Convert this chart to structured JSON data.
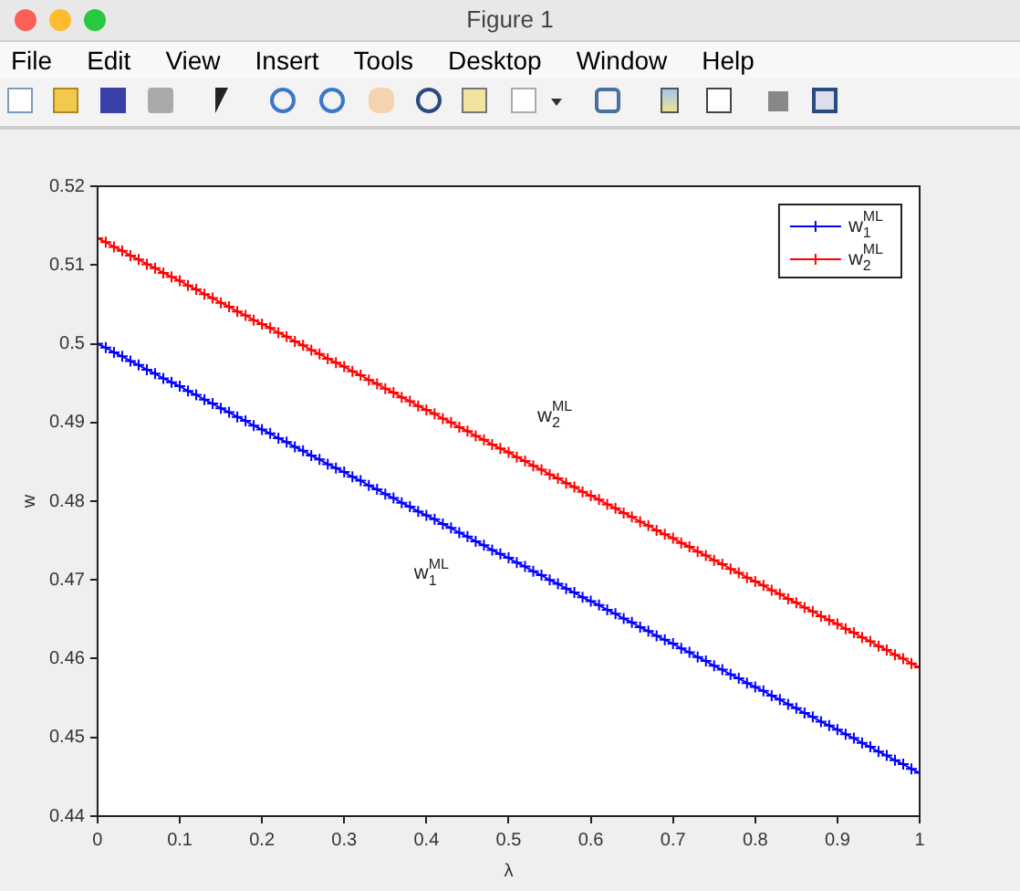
{
  "chart_data": {
    "type": "line",
    "xlabel": "λ",
    "ylabel": "w",
    "annotations": [
      "Figure 1",
      "File",
      "Edit",
      "View",
      "Insert",
      "Tools",
      "Desktop",
      "Window",
      "Help",
      "w$_{2}$$^{ML}$",
      "w$_{1}$$^{ML}$"
    ],
    "x": [
      0,
      0.01,
      0.02,
      0.03,
      0.04,
      0.05,
      0.06,
      0.07,
      0.08,
      0.09,
      0.1,
      0.11,
      0.12,
      0.13,
      0.14,
      0.15,
      0.16,
      0.17,
      0.18,
      0.19,
      0.2,
      0.21,
      0.22,
      0.23,
      0.24,
      0.25,
      0.26,
      0.27,
      0.28,
      0.29,
      0.3,
      0.31,
      0.32,
      0.33,
      0.34,
      0.35,
      0.36,
      0.37,
      0.38,
      0.39,
      0.4,
      0.41,
      0.42,
      0.43,
      0.44,
      0.45,
      0.46,
      0.47,
      0.48,
      0.49,
      0.5,
      0.51,
      0.52,
      0.53,
      0.54,
      0.55,
      0.56,
      0.57,
      0.58,
      0.59,
      0.6,
      0.61,
      0.62,
      0.63,
      0.64,
      0.65,
      0.66,
      0.67,
      0.68,
      0.69,
      0.7,
      0.71,
      0.72,
      0.73,
      0.74,
      0.75,
      0.76,
      0.77,
      0.78,
      0.79,
      0.8,
      0.81,
      0.82,
      0.83,
      0.84,
      0.85,
      0.86,
      0.87,
      0.88,
      0.89,
      0.9,
      0.91,
      0.92,
      0.93,
      0.94,
      0.95,
      0.96,
      0.97,
      0.98,
      0.99,
      1
    ],
    "series": [
      {
        "name": "w$_{1}$$^{ML}$",
        "color": "#0000ff",
        "marker": "cross",
        "values": [
          0.5,
          0.4995,
          0.4989,
          0.4984,
          0.4978,
          0.4973,
          0.4967,
          0.4962,
          0.4956,
          0.4951,
          0.4946,
          0.494,
          0.4935,
          0.4929,
          0.4924,
          0.4918,
          0.4913,
          0.4907,
          0.4902,
          0.4896,
          0.4891,
          0.4886,
          0.488,
          0.4875,
          0.4869,
          0.4864,
          0.4858,
          0.4853,
          0.4847,
          0.4842,
          0.4837,
          0.4831,
          0.4826,
          0.482,
          0.4815,
          0.4809,
          0.4804,
          0.4798,
          0.4793,
          0.4787,
          0.4782,
          0.4777,
          0.4771,
          0.4766,
          0.476,
          0.4755,
          0.4749,
          0.4744,
          0.4738,
          0.4733,
          0.4728,
          0.4722,
          0.4717,
          0.4711,
          0.4706,
          0.47,
          0.4695,
          0.4689,
          0.4684,
          0.4678,
          0.4673,
          0.4668,
          0.4662,
          0.4657,
          0.4651,
          0.4646,
          0.464,
          0.4635,
          0.4629,
          0.4624,
          0.4619,
          0.4613,
          0.4608,
          0.4602,
          0.4597,
          0.4591,
          0.4586,
          0.458,
          0.4575,
          0.4569,
          0.4564,
          0.4559,
          0.4553,
          0.4548,
          0.4542,
          0.4537,
          0.4531,
          0.4526,
          0.452,
          0.4515,
          0.451,
          0.4504,
          0.4499,
          0.4493,
          0.4488,
          0.4482,
          0.4477,
          0.4471,
          0.4466,
          0.446,
          0.4455
        ]
      },
      {
        "name": "w$_{2}$$^{ML}$",
        "color": "#ff0000",
        "marker": "cross",
        "values": [
          0.5134,
          0.5129,
          0.5123,
          0.5118,
          0.5112,
          0.5107,
          0.5101,
          0.5096,
          0.509,
          0.5085,
          0.508,
          0.5074,
          0.5069,
          0.5063,
          0.5058,
          0.5052,
          0.5047,
          0.5041,
          0.5036,
          0.503,
          0.5025,
          0.502,
          0.5014,
          0.5009,
          0.5003,
          0.4998,
          0.4992,
          0.4987,
          0.4981,
          0.4976,
          0.4971,
          0.4965,
          0.496,
          0.4954,
          0.4949,
          0.4943,
          0.4938,
          0.4932,
          0.4927,
          0.4921,
          0.4916,
          0.4911,
          0.4905,
          0.49,
          0.4894,
          0.4889,
          0.4883,
          0.4878,
          0.4872,
          0.4867,
          0.4862,
          0.4856,
          0.4851,
          0.4845,
          0.484,
          0.4834,
          0.4829,
          0.4823,
          0.4818,
          0.4812,
          0.4807,
          0.4802,
          0.4796,
          0.4791,
          0.4785,
          0.478,
          0.4774,
          0.4769,
          0.4763,
          0.4758,
          0.4753,
          0.4747,
          0.4742,
          0.4736,
          0.4731,
          0.4725,
          0.472,
          0.4714,
          0.4709,
          0.4703,
          0.4698,
          0.4693,
          0.4687,
          0.4682,
          0.4676,
          0.4671,
          0.4665,
          0.466,
          0.4654,
          0.4649,
          0.4644,
          0.4638,
          0.4633,
          0.4627,
          0.4622,
          0.4616,
          0.4611,
          0.4605,
          0.46,
          0.4594,
          0.4589
        ]
      }
    ],
    "xlim": [
      0,
      1
    ],
    "xticks": [
      0,
      0.1,
      0.2,
      0.3,
      0.4,
      0.5,
      0.6,
      0.7,
      0.8,
      0.9,
      1
    ],
    "ylim": [
      0.44,
      0.52
    ],
    "yticks": [
      0.44,
      0.45,
      0.46,
      0.47,
      0.48,
      0.49,
      0.5,
      0.51,
      0.52
    ],
    "legend": "top right",
    "line_style": "solid"
  }
}
